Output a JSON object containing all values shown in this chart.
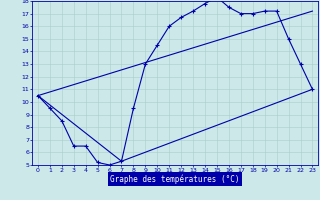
{
  "title": "Graphe des températures (°C)",
  "bg_color": "#cce8e8",
  "plot_bg_color": "#cce8e8",
  "grid_color": "#aacccc",
  "line_color": "#0000aa",
  "xlabel_bg": "#0000aa",
  "xlabel_fg": "#ffffff",
  "xlim": [
    -0.5,
    23.5
  ],
  "ylim": [
    5,
    18
  ],
  "x_ticks": [
    0,
    1,
    2,
    3,
    4,
    5,
    6,
    7,
    8,
    9,
    10,
    11,
    12,
    13,
    14,
    15,
    16,
    17,
    18,
    19,
    20,
    21,
    22,
    23
  ],
  "y_ticks": [
    5,
    6,
    7,
    8,
    9,
    10,
    11,
    12,
    13,
    14,
    15,
    16,
    17,
    18
  ],
  "curve1_x": [
    0,
    1,
    2,
    3,
    4,
    5,
    6,
    7,
    8,
    9,
    10,
    11,
    12,
    13,
    14,
    15,
    16,
    17,
    18,
    19,
    20,
    21,
    22,
    23
  ],
  "curve1_y": [
    10.5,
    9.5,
    8.5,
    6.5,
    6.5,
    5.2,
    5.0,
    5.3,
    9.5,
    13.0,
    14.5,
    16.0,
    16.7,
    17.2,
    17.8,
    18.3,
    17.5,
    17.0,
    17.0,
    17.2,
    17.2,
    15.0,
    13.0,
    11.0
  ],
  "curve2_x": [
    0,
    23
  ],
  "curve2_y": [
    10.5,
    17.2
  ],
  "curve3_x": [
    0,
    7,
    23
  ],
  "curve3_y": [
    10.5,
    5.3,
    11.0
  ]
}
